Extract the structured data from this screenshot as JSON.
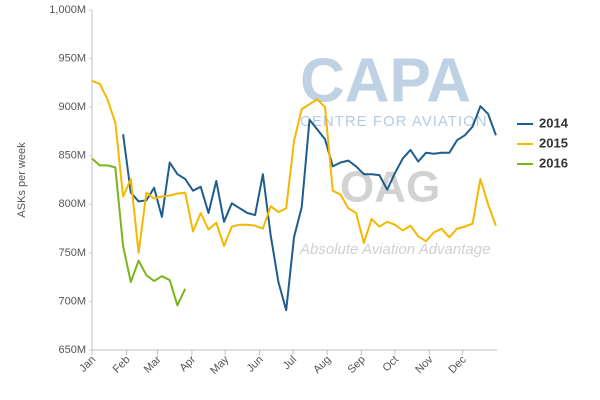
{
  "chart_data": {
    "type": "line",
    "y_label": "ASKs per week",
    "watermark": [
      "CAPA",
      "CENTRE FOR AVIATION",
      "OAG",
      "Absolute Aviation Advantage"
    ],
    "x": [
      0,
      1,
      2,
      3,
      4,
      5,
      6,
      7,
      8,
      9,
      10,
      11,
      12,
      13,
      14,
      15,
      16,
      17,
      18,
      19,
      20,
      21,
      22,
      23,
      24,
      25,
      26,
      27,
      28,
      29,
      30,
      31,
      32,
      33,
      34,
      35,
      36,
      37,
      38,
      39,
      40,
      41,
      42,
      43,
      44,
      45,
      46,
      47,
      48,
      49,
      50,
      51,
      52
    ],
    "xlim": [
      0,
      52.14
    ],
    "xticks": [
      {
        "value": 0,
        "label": "Jan"
      },
      {
        "value": 4.43,
        "label": "Feb"
      },
      {
        "value": 8.43,
        "label": "Mar"
      },
      {
        "value": 12.86,
        "label": "Apr"
      },
      {
        "value": 17.14,
        "label": "May"
      },
      {
        "value": 21.57,
        "label": "Jun"
      },
      {
        "value": 25.86,
        "label": "Jul"
      },
      {
        "value": 30.29,
        "label": "Aug"
      },
      {
        "value": 34.71,
        "label": "Sep"
      },
      {
        "value": 39,
        "label": "Oct"
      },
      {
        "value": 43.43,
        "label": "Nov"
      },
      {
        "value": 47.71,
        "label": "Dec"
      }
    ],
    "ylim": [
      650,
      1000
    ],
    "yticks": [
      {
        "value": 650,
        "label": "650M"
      },
      {
        "value": 700,
        "label": "700M"
      },
      {
        "value": 750,
        "label": "750M"
      },
      {
        "value": 800,
        "label": "800M"
      },
      {
        "value": 850,
        "label": "850M"
      },
      {
        "value": 900,
        "label": "900M"
      },
      {
        "value": 950,
        "label": "950M"
      },
      {
        "value": 1000,
        "label": "1,000M"
      }
    ],
    "grid": false,
    "legend": "right",
    "series": [
      {
        "name": "2014",
        "color": "#1f5d8e",
        "values": [
          null,
          null,
          null,
          null,
          872,
          812,
          803,
          804,
          817,
          787,
          843,
          831,
          826,
          814,
          818,
          791,
          824,
          782,
          801,
          796,
          791,
          789,
          831,
          768,
          720,
          691,
          766,
          797,
          887,
          877,
          867,
          839,
          843,
          845,
          839,
          831,
          831,
          830,
          815,
          832,
          847,
          856,
          844,
          853,
          852,
          853,
          853,
          866,
          871,
          880,
          901,
          893,
          871
        ]
      },
      {
        "name": "2015",
        "color": "#f5b800",
        "values": [
          927,
          924,
          908,
          884,
          808,
          826,
          750,
          812,
          806,
          808,
          809,
          811,
          812,
          772,
          791,
          774,
          781,
          757,
          777,
          779,
          779,
          778,
          775,
          798,
          792,
          796,
          865,
          898,
          903,
          908,
          900,
          814,
          810,
          796,
          791,
          760,
          785,
          777,
          782,
          779,
          773,
          778,
          767,
          762,
          771,
          775,
          766,
          775,
          777,
          780,
          826,
          800,
          778
        ]
      },
      {
        "name": "2016",
        "color": "#7ab51d",
        "values": [
          847,
          840,
          840,
          838,
          757,
          720,
          742,
          727,
          721,
          726,
          722,
          696,
          713,
          null,
          null,
          null,
          null,
          null,
          null,
          null,
          null,
          null,
          null,
          null,
          null,
          null,
          null,
          null,
          null,
          null,
          null,
          null,
          null,
          null,
          null,
          null,
          null,
          null,
          null,
          null,
          null,
          null,
          null,
          null,
          null,
          null,
          null,
          null,
          null,
          null,
          null,
          null,
          null
        ]
      }
    ]
  }
}
